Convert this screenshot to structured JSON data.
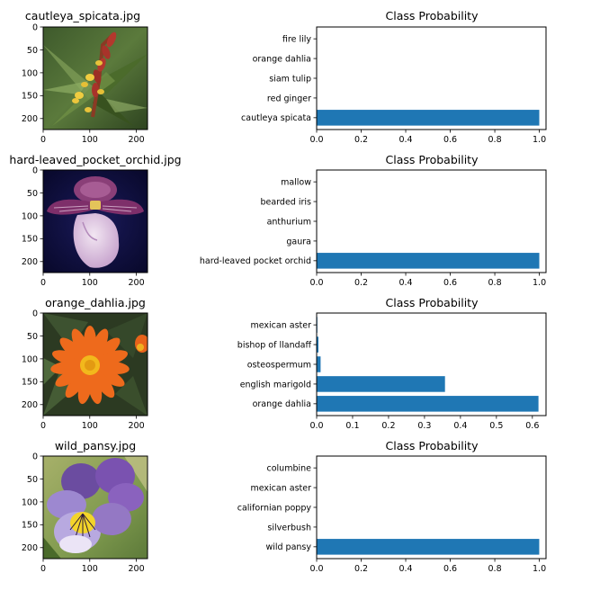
{
  "figure": {
    "bar_color": "#1f77b4"
  },
  "chart_data": [
    {
      "type": "image",
      "title": "cautleya_spicata.jpg",
      "image_kind": "cautleya",
      "xlim": [
        0,
        224
      ],
      "ylim": [
        224,
        0
      ],
      "xticks": [
        0,
        100,
        200
      ],
      "yticks": [
        0,
        50,
        100,
        150,
        200
      ]
    },
    {
      "type": "bar",
      "orientation": "horizontal",
      "title": "Class Probability",
      "categories": [
        "cautleya spicata",
        "red ginger",
        "siam tulip",
        "orange dahlia",
        "fire lily"
      ],
      "values": [
        0.9997,
        0.0002,
        0.0001,
        0.0,
        0.0
      ],
      "xlim": [
        0,
        1.03
      ],
      "xticks": [
        0.0,
        0.2,
        0.4,
        0.6,
        0.8,
        1.0
      ],
      "xtick_labels": [
        "0.0",
        "0.2",
        "0.4",
        "0.6",
        "0.8",
        "1.0"
      ]
    },
    {
      "type": "image",
      "title": "hard-leaved_pocket_orchid.jpg",
      "image_kind": "orchid",
      "xlim": [
        0,
        224
      ],
      "ylim": [
        224,
        0
      ],
      "xticks": [
        0,
        100,
        200
      ],
      "yticks": [
        0,
        50,
        100,
        150,
        200
      ]
    },
    {
      "type": "bar",
      "orientation": "horizontal",
      "title": "Class Probability",
      "categories": [
        "hard-leaved pocket orchid",
        "gaura",
        "anthurium",
        "bearded iris",
        "mallow"
      ],
      "values": [
        0.9998,
        0.0001,
        0.0,
        0.0,
        0.0
      ],
      "xlim": [
        0,
        1.03
      ],
      "xticks": [
        0.0,
        0.2,
        0.4,
        0.6,
        0.8,
        1.0
      ],
      "xtick_labels": [
        "0.0",
        "0.2",
        "0.4",
        "0.6",
        "0.8",
        "1.0"
      ]
    },
    {
      "type": "image",
      "title": "orange_dahlia.jpg",
      "image_kind": "dahlia",
      "xlim": [
        0,
        224
      ],
      "ylim": [
        224,
        0
      ],
      "xticks": [
        0,
        100,
        200
      ],
      "yticks": [
        0,
        50,
        100,
        150,
        200
      ]
    },
    {
      "type": "bar",
      "orientation": "horizontal",
      "title": "Class Probability",
      "categories": [
        "orange dahlia",
        "english marigold",
        "osteospermum",
        "bishop of llandaff",
        "mexican aster"
      ],
      "values": [
        0.617,
        0.357,
        0.011,
        0.005,
        0.002
      ],
      "xlim": [
        0,
        0.638
      ],
      "xticks": [
        0.0,
        0.1,
        0.2,
        0.3,
        0.4,
        0.5,
        0.6
      ],
      "xtick_labels": [
        "0.0",
        "0.1",
        "0.2",
        "0.3",
        "0.4",
        "0.5",
        "0.6"
      ]
    },
    {
      "type": "image",
      "title": "wild_pansy.jpg",
      "image_kind": "pansy",
      "xlim": [
        0,
        224
      ],
      "ylim": [
        224,
        0
      ],
      "xticks": [
        0,
        100,
        200
      ],
      "yticks": [
        0,
        50,
        100,
        150,
        200
      ]
    },
    {
      "type": "bar",
      "orientation": "horizontal",
      "title": "Class Probability",
      "categories": [
        "wild pansy",
        "silverbush",
        "californian poppy",
        "mexican aster",
        "columbine"
      ],
      "values": [
        0.9995,
        0.0003,
        0.0001,
        0.0,
        0.0
      ],
      "xlim": [
        0,
        1.03
      ],
      "xticks": [
        0.0,
        0.2,
        0.4,
        0.6,
        0.8,
        1.0
      ],
      "xtick_labels": [
        "0.0",
        "0.2",
        "0.4",
        "0.6",
        "0.8",
        "1.0"
      ]
    }
  ]
}
